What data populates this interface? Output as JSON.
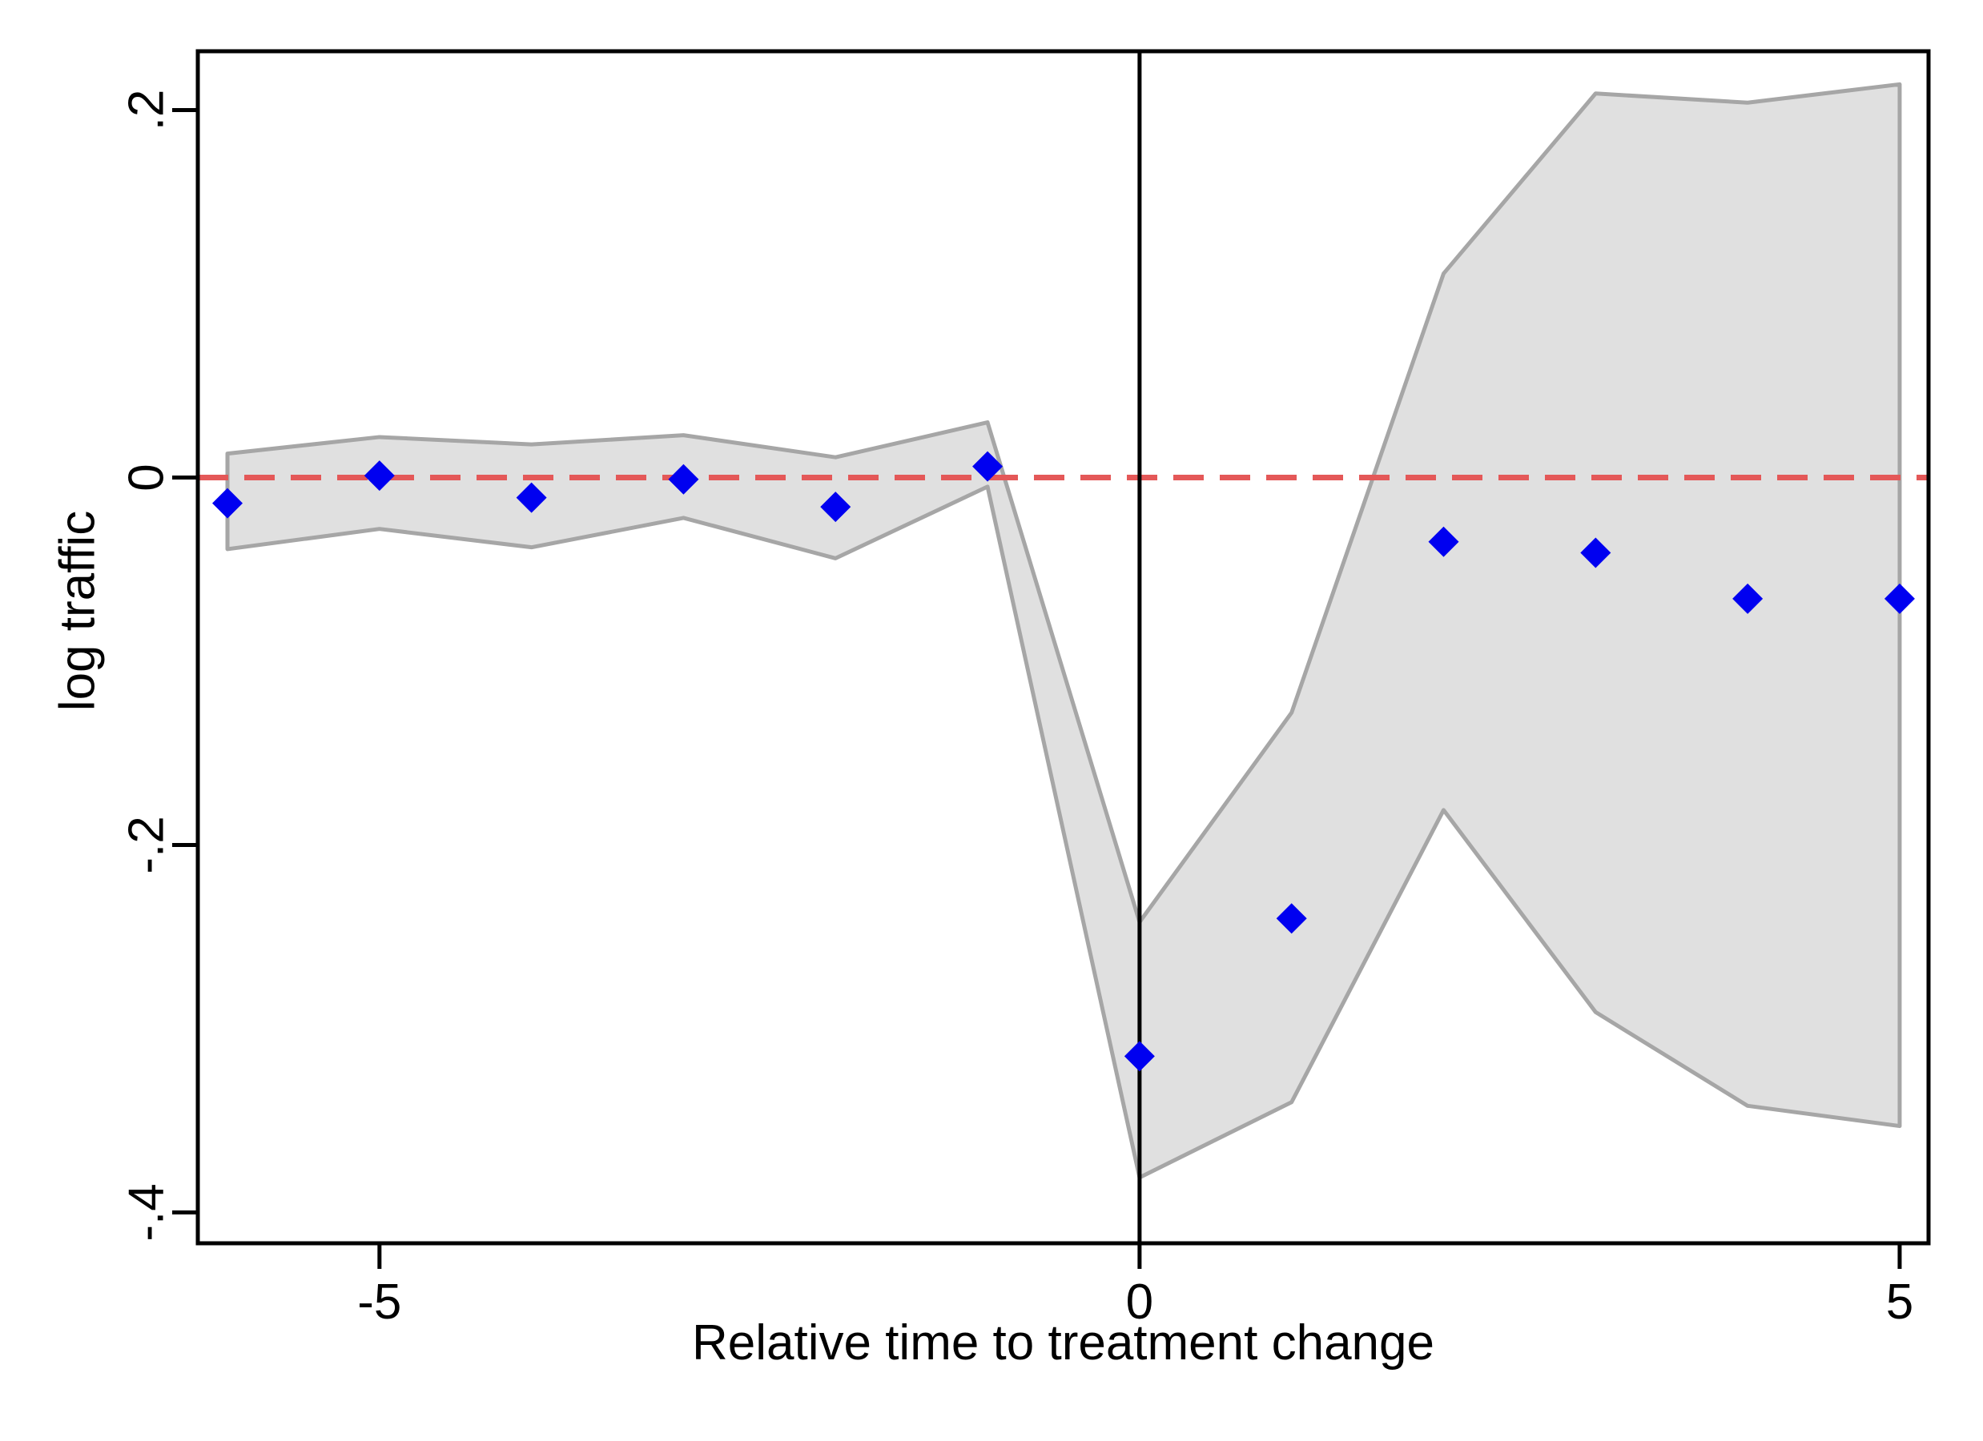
{
  "figure": {
    "title": "",
    "xlabel": "Relative time to treatment change",
    "ylabel": "log traffic"
  },
  "chart_data": {
    "type": "scatter",
    "title": "",
    "xlabel": "Relative time to treatment change",
    "ylabel": "log traffic",
    "x": [
      -6,
      -5,
      -4,
      -3,
      -2,
      -1,
      0,
      1,
      2,
      3,
      4,
      5
    ],
    "series": [
      {
        "name": "point-estimate",
        "marker": "diamond",
        "color": "#0000f0",
        "values": [
          -0.014,
          0.001,
          -0.011,
          -0.001,
          -0.016,
          0.006,
          -0.315,
          -0.24,
          -0.035,
          -0.041,
          -0.066,
          -0.066
        ]
      },
      {
        "name": "ci-upper",
        "values": [
          0.013,
          0.022,
          0.018,
          0.023,
          0.011,
          0.03,
          -0.242,
          -0.128,
          0.111,
          0.209,
          0.204,
          0.214
        ]
      },
      {
        "name": "ci-lower",
        "values": [
          -0.039,
          -0.028,
          -0.038,
          -0.022,
          -0.044,
          -0.005,
          -0.381,
          -0.34,
          -0.181,
          -0.291,
          -0.342,
          -0.353
        ]
      }
    ],
    "band": {
      "fill": "#e0e0e0",
      "stroke": "#a6a6a6",
      "stroke_width": 5
    },
    "reference_lines": [
      {
        "name": "zero-line",
        "orientation": "horizontal",
        "value": 0,
        "color": "#e45858",
        "style": "dashed"
      },
      {
        "name": "treatment-line",
        "orientation": "vertical",
        "value": 0,
        "color": "#000000",
        "style": "solid"
      }
    ],
    "xticks": [
      {
        "label": "-5",
        "value": -5
      },
      {
        "label": "0",
        "value": 0
      },
      {
        "label": "5",
        "value": 5
      }
    ],
    "yticks": [
      {
        "label": ".2",
        "value": 0.2
      },
      {
        "label": "0",
        "value": 0
      },
      {
        "label": "-.2",
        "value": -0.2
      },
      {
        "label": "-.4",
        "value": -0.4
      }
    ],
    "xlim": [
      -6.195,
      5.19
    ],
    "ylim": [
      -0.4168,
      0.232
    ],
    "grid": false,
    "legend": "none",
    "marker_color": "#0000f0",
    "frame_color": "#000000"
  }
}
